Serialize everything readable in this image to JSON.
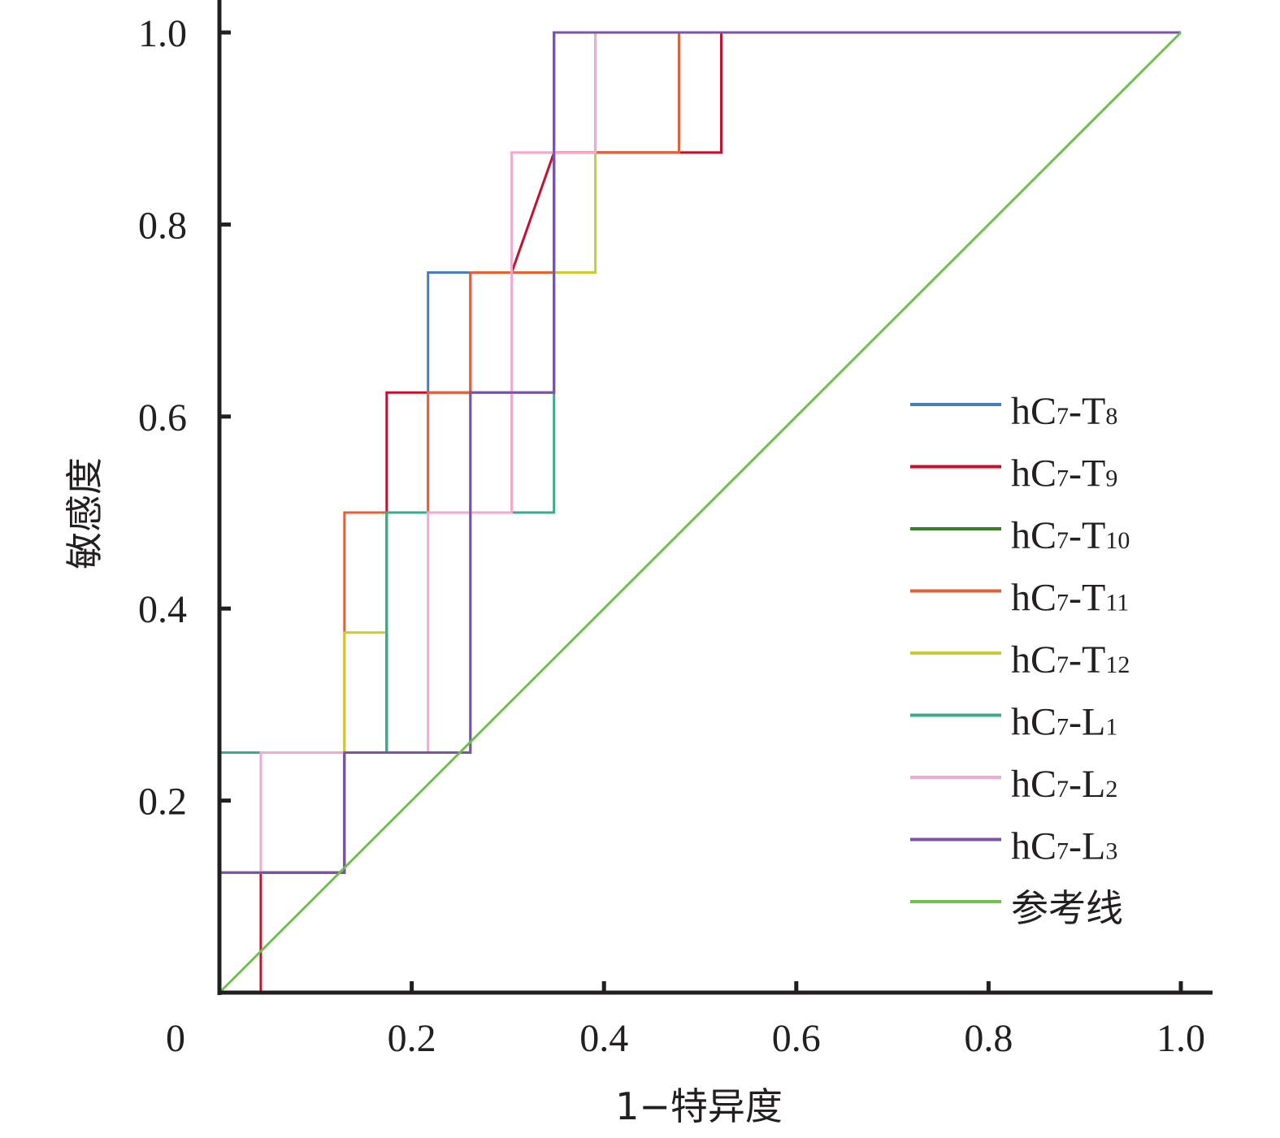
{
  "chart_data": {
    "type": "line",
    "title": "",
    "xlabel": "1−特异度",
    "ylabel": "敏感度",
    "xlim": [
      0,
      1
    ],
    "ylim": [
      0,
      1
    ],
    "x_ticks": [
      {
        "value": 0,
        "label": "0"
      },
      {
        "value": 0.2,
        "label": "0.2"
      },
      {
        "value": 0.4,
        "label": "0.4"
      },
      {
        "value": 0.6,
        "label": "0.6"
      },
      {
        "value": 0.8,
        "label": "0.8"
      },
      {
        "value": 1.0,
        "label": "1.0"
      }
    ],
    "y_ticks": [
      {
        "value": 0.2,
        "label": "0.2"
      },
      {
        "value": 0.4,
        "label": "0.4"
      },
      {
        "value": 0.6,
        "label": "0.6"
      },
      {
        "value": 0.8,
        "label": "0.8"
      },
      {
        "value": 1.0,
        "label": "1.0"
      }
    ],
    "grid": false,
    "legend_position": "right",
    "series": [
      {
        "name": "hC7-T8",
        "base": "hC",
        "sub1": "7",
        "mid": "-T",
        "sub2": "8",
        "color": "#4a7ebb",
        "points": [
          [
            0,
            0
          ],
          [
            0,
            0.125
          ],
          [
            0.13,
            0.125
          ],
          [
            0.13,
            0.25
          ],
          [
            0.174,
            0.25
          ],
          [
            0.174,
            0.5
          ],
          [
            0.217,
            0.5
          ],
          [
            0.217,
            0.75
          ],
          [
            0.261,
            0.75
          ],
          [
            0.261,
            0.75
          ],
          [
            0.348,
            0.75
          ],
          [
            0.348,
            0.875
          ],
          [
            0.391,
            0.875
          ],
          [
            0.391,
            1.0
          ],
          [
            1,
            1
          ]
        ]
      },
      {
        "name": "hC7-T9",
        "base": "hC",
        "sub1": "7",
        "mid": "-T",
        "sub2": "9",
        "color": "#c8102e",
        "points": [
          [
            0,
            0
          ],
          [
            0.043,
            0
          ],
          [
            0.043,
            0.125
          ],
          [
            0.13,
            0.125
          ],
          [
            0.13,
            0.25
          ],
          [
            0.174,
            0.25
          ],
          [
            0.174,
            0.625
          ],
          [
            0.261,
            0.625
          ],
          [
            0.261,
            0.75
          ],
          [
            0.304,
            0.75
          ],
          [
            0.348,
            0.875
          ],
          [
            0.522,
            0.875
          ],
          [
            0.522,
            1.0
          ],
          [
            1,
            1
          ]
        ]
      },
      {
        "name": "hC7-T10",
        "base": "hC",
        "sub1": "7",
        "mid": "-T",
        "sub2": "10",
        "color": "#3a7d2c",
        "points": [
          [
            0,
            0
          ],
          [
            0,
            0.125
          ],
          [
            0.13,
            0.125
          ],
          [
            0.13,
            0.25
          ],
          [
            0.261,
            0.25
          ],
          [
            0.261,
            0.625
          ],
          [
            0.348,
            0.625
          ],
          [
            0.348,
            1.0
          ],
          [
            1,
            1
          ]
        ]
      },
      {
        "name": "hC7-T11",
        "base": "hC",
        "sub1": "7",
        "mid": "-T",
        "sub2": "11",
        "color": "#e0623a",
        "points": [
          [
            0,
            0
          ],
          [
            0,
            0.25
          ],
          [
            0.13,
            0.25
          ],
          [
            0.13,
            0.5
          ],
          [
            0.217,
            0.5
          ],
          [
            0.217,
            0.625
          ],
          [
            0.261,
            0.625
          ],
          [
            0.261,
            0.75
          ],
          [
            0.348,
            0.75
          ],
          [
            0.348,
            0.875
          ],
          [
            0.478,
            0.875
          ],
          [
            0.478,
            1.0
          ],
          [
            1,
            1
          ]
        ]
      },
      {
        "name": "hC7-T12",
        "base": "hC",
        "sub1": "7",
        "mid": "-T",
        "sub2": "12",
        "color": "#cdc935",
        "points": [
          [
            0,
            0
          ],
          [
            0,
            0.25
          ],
          [
            0.13,
            0.25
          ],
          [
            0.13,
            0.375
          ],
          [
            0.174,
            0.375
          ],
          [
            0.174,
            0.5
          ],
          [
            0.304,
            0.5
          ],
          [
            0.304,
            0.625
          ],
          [
            0.348,
            0.625
          ],
          [
            0.348,
            0.75
          ],
          [
            0.391,
            0.75
          ],
          [
            0.391,
            0.875
          ],
          [
            0.348,
            0.875
          ],
          [
            0.348,
            1.0
          ],
          [
            1,
            1
          ]
        ]
      },
      {
        "name": "hC7-L1",
        "base": "hC",
        "sub1": "7",
        "mid": "-L",
        "sub2": "1",
        "color": "#3aaa8c",
        "points": [
          [
            0,
            0
          ],
          [
            0,
            0.25
          ],
          [
            0.043,
            0.25
          ],
          [
            0.13,
            0.25
          ],
          [
            0.174,
            0.25
          ],
          [
            0.174,
            0.5
          ],
          [
            0.348,
            0.5
          ],
          [
            0.348,
            0.625
          ],
          [
            0.348,
            1.0
          ],
          [
            1,
            1
          ]
        ]
      },
      {
        "name": "hC7-L2",
        "base": "hC",
        "sub1": "7",
        "mid": "-L",
        "sub2": "2",
        "color": "#f4a7cf",
        "points": [
          [
            0,
            0
          ],
          [
            0,
            0.125
          ],
          [
            0.043,
            0.125
          ],
          [
            0.043,
            0.25
          ],
          [
            0.217,
            0.25
          ],
          [
            0.217,
            0.5
          ],
          [
            0.304,
            0.5
          ],
          [
            0.304,
            0.875
          ],
          [
            0.391,
            0.875
          ],
          [
            0.391,
            1.0
          ],
          [
            1,
            1
          ]
        ]
      },
      {
        "name": "hC7-L3",
        "base": "hC",
        "sub1": "7",
        "mid": "-L",
        "sub2": "3",
        "color": "#7b52a8",
        "points": [
          [
            0,
            0
          ],
          [
            0,
            0.125
          ],
          [
            0.13,
            0.125
          ],
          [
            0.13,
            0.25
          ],
          [
            0.261,
            0.25
          ],
          [
            0.261,
            0.625
          ],
          [
            0.348,
            0.625
          ],
          [
            0.348,
            1.0
          ],
          [
            1,
            1
          ]
        ]
      },
      {
        "name": "参考线",
        "color": "#6cc24a",
        "points": [
          [
            0,
            0
          ],
          [
            1,
            1
          ]
        ]
      }
    ]
  }
}
